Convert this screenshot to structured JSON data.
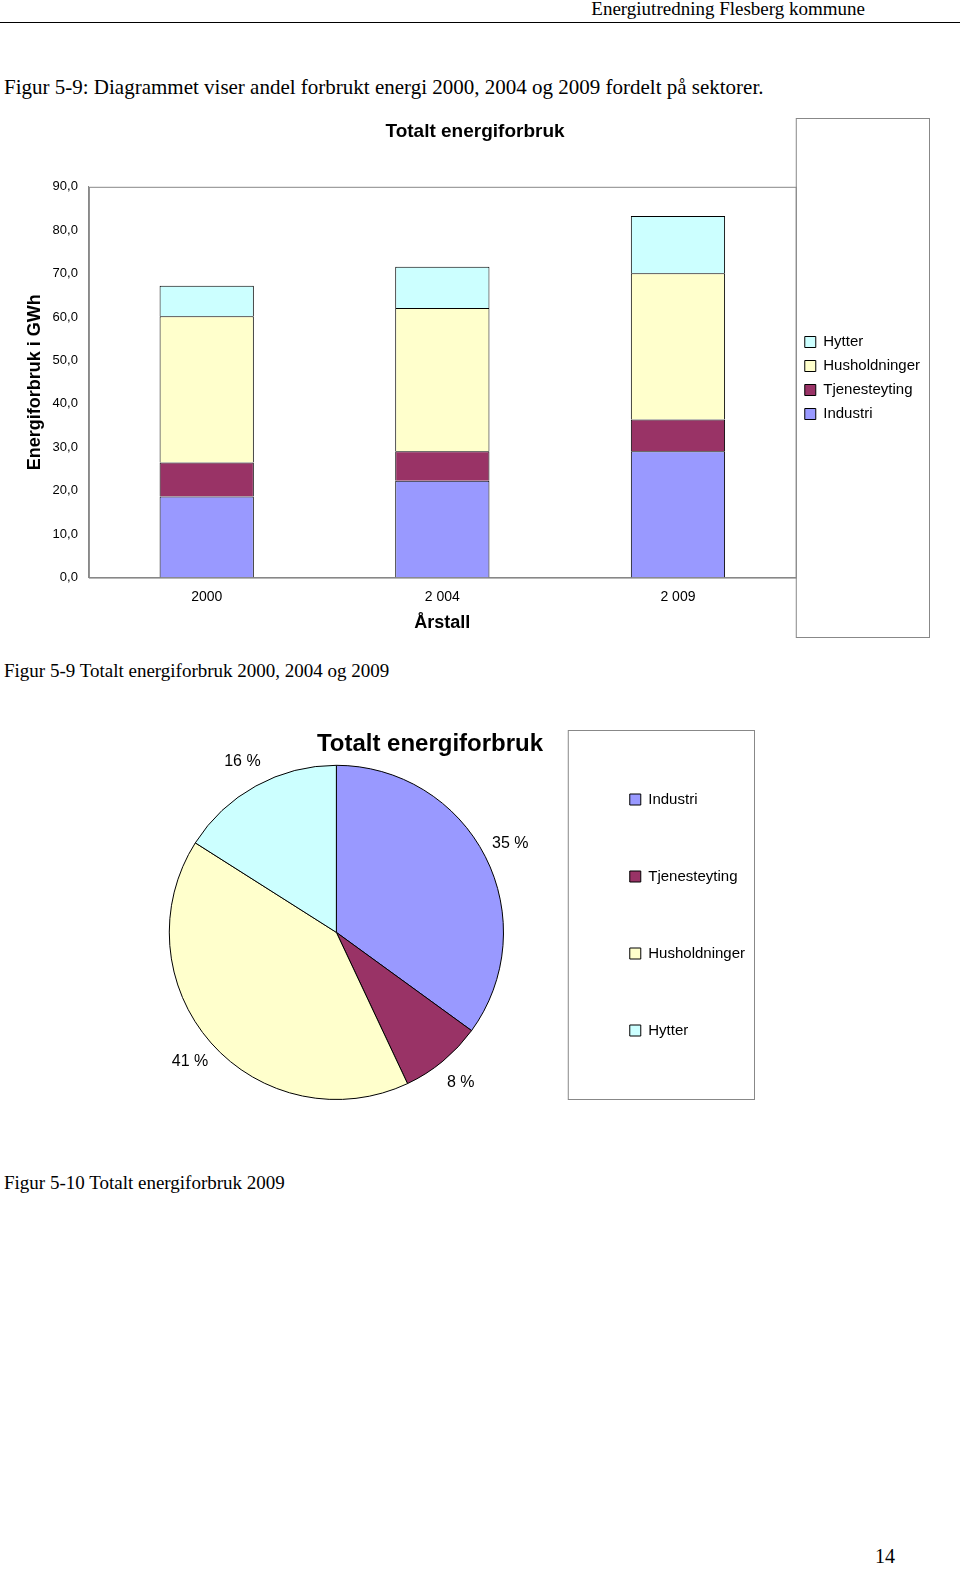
{
  "page": {
    "header": "Energiutredning Flesberg kommune",
    "intro": "Figur 5-9: Diagrammet viser andel forbrukt energi 2000, 2004 og 2009 fordelt på sektorer.",
    "captions": [
      "Figur 5-9 Totalt energiforbruk 2000, 2004 og 2009",
      "Figur 5-10 Totalt energiforbruk 2009"
    ],
    "page_number": "14"
  },
  "chart_data": [
    {
      "type": "bar",
      "title": "Totalt energiforbruk",
      "x_label": "Årstall",
      "y_label": "Energiforbruk i GWh",
      "categories": [
        "2000",
        "2 004",
        "2 009"
      ],
      "series": [
        {
          "name": "Industri",
          "color": "#9999ff",
          "values": [
            18.7,
            22.3,
            29.1
          ]
        },
        {
          "name": "Tjenesteyting",
          "color": "#993366",
          "values": [
            7.8,
            6.8,
            7.3
          ]
        },
        {
          "name": "Husholdninger",
          "color": "#ffffcc",
          "values": [
            33.7,
            33.0,
            33.7
          ]
        },
        {
          "name": "Hytter",
          "color": "#ccffff",
          "values": [
            7.0,
            9.5,
            13.2
          ]
        }
      ],
      "stacked": true,
      "grid": false,
      "legend": "right",
      "ylim": [
        0,
        90
      ],
      "yticks": [
        {
          "value": 0,
          "label": "0,0"
        },
        {
          "value": 10,
          "label": "10,0"
        },
        {
          "value": 20,
          "label": "20,0"
        },
        {
          "value": 30,
          "label": "30,0"
        },
        {
          "value": 40,
          "label": "40,0"
        },
        {
          "value": 50,
          "label": "50,0"
        },
        {
          "value": 60,
          "label": "60,0"
        },
        {
          "value": 70,
          "label": "70,0"
        },
        {
          "value": 80,
          "label": "80,0"
        },
        {
          "value": 90,
          "label": "90,0"
        }
      ]
    },
    {
      "type": "pie",
      "title": "Totalt energiforbruk",
      "categories": [
        "Industri",
        "Tjenesteyting",
        "Husholdninger",
        "Hytter"
      ],
      "values": [
        35,
        8,
        41,
        16
      ],
      "value_labels": [
        "35 %",
        "8 %",
        "41 %",
        "16 %"
      ],
      "colors": [
        "#9999ff",
        "#993366",
        "#ffffcc",
        "#ccffff"
      ],
      "data_labels": true,
      "legend": "right"
    }
  ]
}
